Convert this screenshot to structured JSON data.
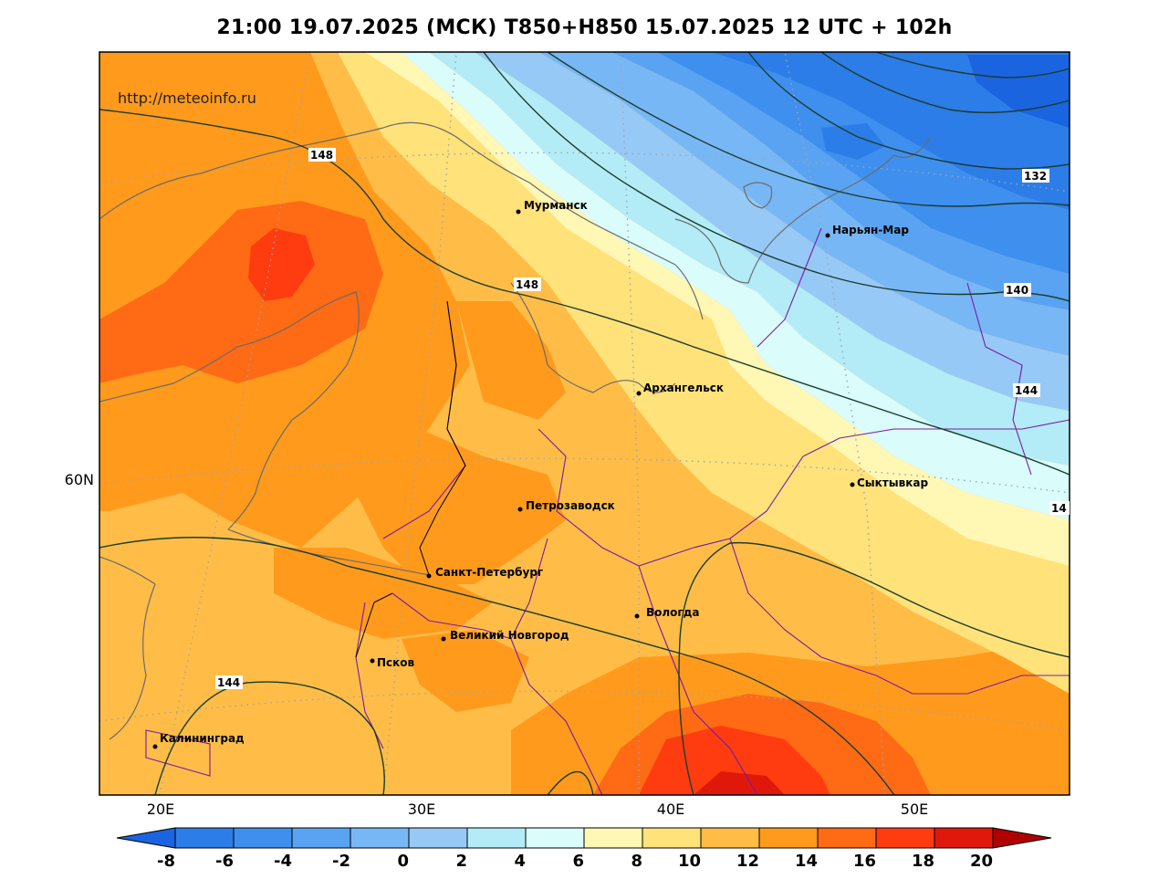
{
  "title": "21:00 19.07.2025 (МСК) T850+H850 15.07.2025 12 UTC + 102h",
  "watermark": "http://meteoinfo.ru",
  "axes": {
    "lon_labels": [
      "20E",
      "30E",
      "40E",
      "50E"
    ],
    "lat_labels": [
      "60N"
    ]
  },
  "cities": [
    {
      "name": "Мурманск"
    },
    {
      "name": "Нарьян-Мар"
    },
    {
      "name": "Архангельск"
    },
    {
      "name": "Сыктывкар"
    },
    {
      "name": "Петрозаводск"
    },
    {
      "name": "Санкт-Петербург"
    },
    {
      "name": "Вологда"
    },
    {
      "name": "Великий Новгород"
    },
    {
      "name": "Псков"
    },
    {
      "name": "Калининград"
    }
  ],
  "contour_labels": [
    {
      "text": "148"
    },
    {
      "text": "148"
    },
    {
      "text": "132"
    },
    {
      "text": "140"
    },
    {
      "text": "144"
    },
    {
      "text": "14"
    },
    {
      "text": "144"
    }
  ],
  "colorbar": {
    "ticks": [
      "-8",
      "-6",
      "-4",
      "-2",
      "0",
      "2",
      "4",
      "6",
      "8",
      "10",
      "12",
      "14",
      "16",
      "18",
      "20"
    ],
    "colors": [
      "#1a64e0",
      "#2d7de8",
      "#3f8fee",
      "#5aa3f2",
      "#78b7f5",
      "#97c9f6",
      "#b3ecf7",
      "#dafcfb",
      "#fff7b4",
      "#ffe27a",
      "#ffbd47",
      "#ff9a1c",
      "#ff6a14",
      "#ff3c0f",
      "#e0180c",
      "#b00000"
    ],
    "under_color": "#1a64e0",
    "over_color": "#b00000"
  }
}
